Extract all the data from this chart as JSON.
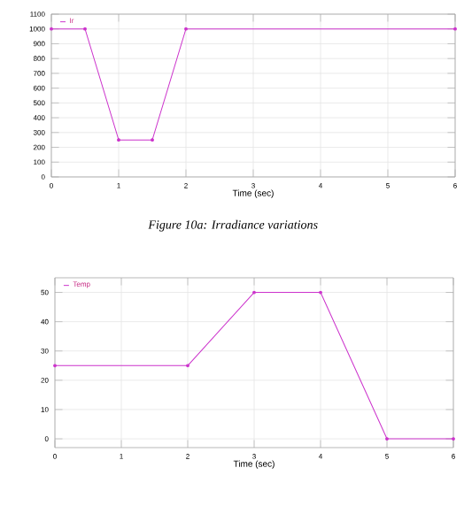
{
  "chart_data": [
    {
      "type": "line",
      "xlabel": "Time (sec)",
      "annotations": [
        "Figure 10a: Irradiance variations"
      ],
      "xlim": [
        0,
        6
      ],
      "ylim": [
        0,
        1100
      ],
      "xticks": [
        0,
        1,
        2,
        3,
        4,
        5,
        6
      ],
      "yticks": [
        0,
        100,
        200,
        300,
        400,
        500,
        600,
        700,
        800,
        900,
        1000,
        1100
      ],
      "grid": true,
      "legend": "top left",
      "marker": "circle",
      "series": [
        {
          "name": "Ir",
          "color": "#cc33cc",
          "x": [
            0,
            0.5,
            1,
            1.5,
            2,
            6
          ],
          "values": [
            1000,
            1000,
            250,
            250,
            1000,
            1000
          ]
        }
      ]
    },
    {
      "type": "line",
      "xlabel": "Time (sec)",
      "xlim": [
        0,
        6
      ],
      "ylim": [
        -3,
        55
      ],
      "xticks": [
        0,
        1,
        2,
        3,
        4,
        5,
        6
      ],
      "yticks": [
        0,
        10,
        20,
        30,
        40,
        50
      ],
      "grid": true,
      "legend": "top left",
      "marker": "circle",
      "series": [
        {
          "name": "Temp",
          "color": "#cc33cc",
          "x": [
            0,
            2,
            3,
            4,
            5,
            6
          ],
          "values": [
            25,
            25,
            50,
            50,
            0,
            0
          ]
        }
      ]
    }
  ]
}
